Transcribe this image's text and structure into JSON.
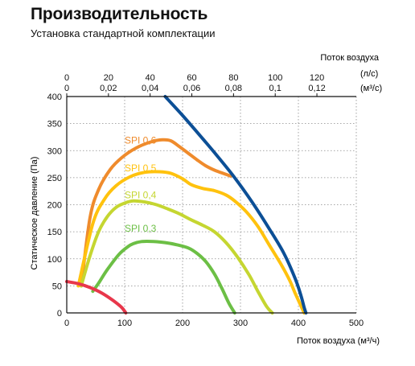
{
  "title": "Производительность",
  "subtitle": "Установка стандартной комплектации",
  "chart_data": {
    "type": "line",
    "title": "Производительность",
    "subtitle": "Установка стандартной комплектации",
    "xlabel": "Поток воздуха (м³/ч)",
    "ylabel": "Статическое давление (Па)",
    "top_axis_title": "Поток воздуха",
    "top_axis_unit_ls": "(л/с)",
    "top_axis_unit_m3s": "(м³/с)",
    "xlim": [
      0,
      500
    ],
    "ylim": [
      0,
      400
    ],
    "grid": true,
    "x_ticks": [
      "0",
      "100",
      "200",
      "300",
      "400",
      "500"
    ],
    "y_ticks": [
      "0",
      "50",
      "100",
      "150",
      "200",
      "250",
      "300",
      "350",
      "400"
    ],
    "top_ls_ticks": [
      "0",
      "20",
      "40",
      "60",
      "80",
      "100",
      "120"
    ],
    "top_m3s_ticks": [
      "0",
      "0,02",
      "0,04",
      "0,06",
      "0,08",
      "0,1",
      "0,12"
    ],
    "series": [
      {
        "name": "SPI 0,6",
        "color": "#ef8b2c",
        "x": [
          25,
          40,
          55,
          75,
          95,
          120,
          145,
          165,
          180,
          195,
          210,
          225,
          240,
          255,
          270,
          283
        ],
        "y": [
          50,
          175,
          228,
          265,
          287,
          305,
          316,
          320,
          318,
          307,
          295,
          283,
          272,
          264,
          258,
          253
        ]
      },
      {
        "name": "SPI 0,5",
        "color": "#ffc20e",
        "x": [
          20,
          45,
          65,
          85,
          110,
          135,
          160,
          180,
          200,
          215,
          235,
          255,
          275,
          290,
          310,
          330,
          350,
          370,
          385,
          395,
          410
        ],
        "y": [
          50,
          165,
          210,
          235,
          252,
          260,
          261,
          258,
          248,
          237,
          230,
          226,
          218,
          207,
          187,
          160,
          125,
          90,
          60,
          35,
          0
        ]
      },
      {
        "name": "SPI 0,4",
        "color": "#c5d631",
        "x": [
          25,
          40,
          55,
          70,
          85,
          100,
          115,
          135,
          155,
          175,
          195,
          215,
          235,
          255,
          275,
          295,
          315,
          330,
          345,
          355
        ],
        "y": [
          50,
          105,
          150,
          178,
          195,
          203,
          207,
          205,
          200,
          192,
          183,
          172,
          162,
          150,
          130,
          103,
          70,
          40,
          12,
          0
        ]
      },
      {
        "name": "SPI 0,3",
        "color": "#6cbf45",
        "x": [
          45,
          55,
          70,
          90,
          105,
          115,
          130,
          150,
          170,
          190,
          210,
          225,
          240,
          255,
          268,
          280,
          290
        ],
        "y": [
          40,
          55,
          80,
          108,
          122,
          128,
          132,
          132,
          130,
          126,
          120,
          110,
          95,
          72,
          45,
          18,
          0
        ]
      },
      {
        "name": "",
        "color": "#e8374b",
        "x": [
          0,
          20,
          40,
          60,
          80,
          95,
          102
        ],
        "y": [
          58,
          54,
          47,
          37,
          23,
          10,
          0
        ]
      },
      {
        "name": "",
        "color": "#0c4f96",
        "x": [
          170,
          200,
          230,
          260,
          290,
          320,
          350,
          375,
          395,
          405,
          410,
          413
        ],
        "y": [
          400,
          365,
          328,
          290,
          250,
          205,
          155,
          110,
          62,
          30,
          10,
          0
        ]
      }
    ]
  }
}
